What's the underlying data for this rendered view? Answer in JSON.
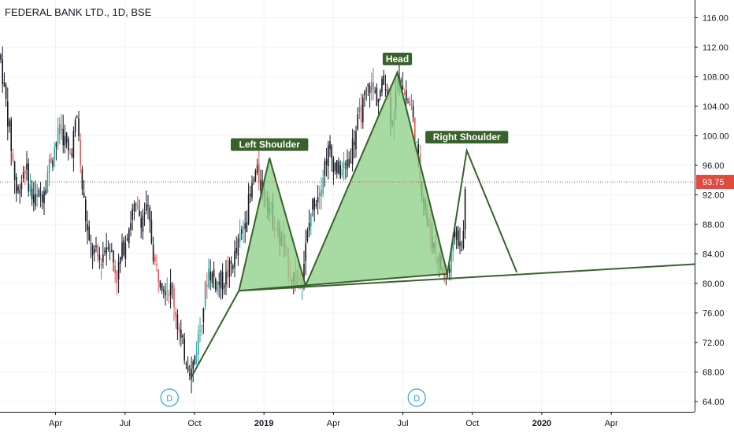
{
  "header": {
    "symbol_title": "FEDERAL BANK LTD., 1D, BSE"
  },
  "colors": {
    "up": "#26a69a",
    "down": "#ef5350",
    "candle_dark": "#131722",
    "pattern_fill": "#8fd18a",
    "pattern_line": "#38612b",
    "label_bg": "#38612b",
    "label_text": "#ffffff",
    "price_line": "#e04a3f",
    "dividend_marker": "#2aa8d8"
  },
  "chart_data": {
    "type": "candlestick",
    "title": "FEDERAL BANK LTD., 1D, BSE",
    "y_axis": {
      "ticks": [
        116,
        112,
        108,
        104,
        100,
        96,
        92,
        88,
        84,
        80,
        76,
        72,
        68,
        64
      ],
      "range": [
        62.6,
        118.4
      ],
      "position": "right"
    },
    "x_axis": {
      "labels": [
        {
          "label": "Apr",
          "t": 2018.25
        },
        {
          "label": "Jul",
          "t": 2018.5
        },
        {
          "label": "Oct",
          "t": 2018.75
        },
        {
          "label": "2019",
          "t": 2019.0
        },
        {
          "label": "Apr",
          "t": 2019.25
        },
        {
          "label": "Jul",
          "t": 2019.5
        },
        {
          "label": "Oct",
          "t": 2019.75
        },
        {
          "label": "2020",
          "t": 2020.0
        },
        {
          "label": "Apr",
          "t": 2020.25
        }
      ],
      "range": [
        2018.05,
        2020.55
      ]
    },
    "last_price": {
      "value": 93.75,
      "label": "93.75"
    },
    "price_path": [
      [
        2018.05,
        111.0
      ],
      [
        2018.08,
        102.0
      ],
      [
        2018.11,
        92.0
      ],
      [
        2018.14,
        96.0
      ],
      [
        2018.17,
        91.0
      ],
      [
        2018.2,
        92.0
      ],
      [
        2018.24,
        98.0
      ],
      [
        2018.27,
        101.0
      ],
      [
        2018.3,
        97.0
      ],
      [
        2018.33,
        103.0
      ],
      [
        2018.34,
        95.0
      ],
      [
        2018.37,
        85.0
      ],
      [
        2018.41,
        83.0
      ],
      [
        2018.44,
        86.0
      ],
      [
        2018.47,
        81.0
      ],
      [
        2018.5,
        86.0
      ],
      [
        2018.53,
        90.0
      ],
      [
        2018.56,
        89.0
      ],
      [
        2018.58,
        90.0
      ],
      [
        2018.61,
        82.0
      ],
      [
        2018.64,
        80.0
      ],
      [
        2018.67,
        79.0
      ],
      [
        2018.7,
        72.0
      ],
      [
        2018.74,
        68.0
      ],
      [
        2018.77,
        74.0
      ],
      [
        2018.8,
        82.0
      ],
      [
        2018.83,
        80.0
      ],
      [
        2018.86,
        80.5
      ],
      [
        2018.9,
        84.0
      ],
      [
        2018.94,
        90.0
      ],
      [
        2018.97,
        95.0
      ],
      [
        2019.0,
        93.0
      ],
      [
        2019.03,
        89.0
      ],
      [
        2019.06,
        86.0
      ],
      [
        2019.09,
        82.0
      ],
      [
        2019.12,
        80.0
      ],
      [
        2019.14,
        82.0
      ],
      [
        2019.17,
        90.0
      ],
      [
        2019.2,
        93.0
      ],
      [
        2019.23,
        98.0
      ],
      [
        2019.27,
        95.0
      ],
      [
        2019.3,
        96.0
      ],
      [
        2019.34,
        102.0
      ],
      [
        2019.38,
        107.0
      ],
      [
        2019.41,
        105.0
      ],
      [
        2019.44,
        108.0
      ],
      [
        2019.46,
        102.0
      ],
      [
        2019.49,
        109.0
      ],
      [
        2019.51,
        105.0
      ],
      [
        2019.53,
        104.0
      ],
      [
        2019.56,
        95.0
      ],
      [
        2019.59,
        88.0
      ],
      [
        2019.62,
        84.0
      ],
      [
        2019.65,
        81.0
      ],
      [
        2019.67,
        82.0
      ],
      [
        2019.69,
        88.0
      ],
      [
        2019.7,
        86.0
      ],
      [
        2019.71,
        83.0
      ],
      [
        2019.72,
        90.0
      ],
      [
        2019.73,
        93.75
      ]
    ],
    "dividend_markers": [
      {
        "label": "D",
        "t": 2018.66
      },
      {
        "label": "D",
        "t": 2019.55
      }
    ],
    "pattern": {
      "neckline": [
        [
          2018.91,
          79.0
        ],
        [
          2020.55,
          82.6
        ]
      ],
      "points": [
        {
          "t": 2018.74,
          "p": 67.4
        },
        {
          "t": 2018.91,
          "p": 79.0
        },
        {
          "t": 2019.02,
          "p": 97.0
        },
        {
          "t": 2019.15,
          "p": 79.7
        },
        {
          "t": 2019.48,
          "p": 108.6
        },
        {
          "t": 2019.66,
          "p": 81.3
        },
        {
          "t": 2019.73,
          "p": 98.0
        },
        {
          "t": 2019.91,
          "p": 81.5
        }
      ]
    },
    "annotations": [
      {
        "text": "Left Shoulder",
        "t": 2019.02,
        "p": 97.0
      },
      {
        "text": "Head",
        "t": 2019.48,
        "p": 108.6
      },
      {
        "text": "Right Shoulder",
        "t": 2019.73,
        "p": 98.0
      }
    ]
  }
}
